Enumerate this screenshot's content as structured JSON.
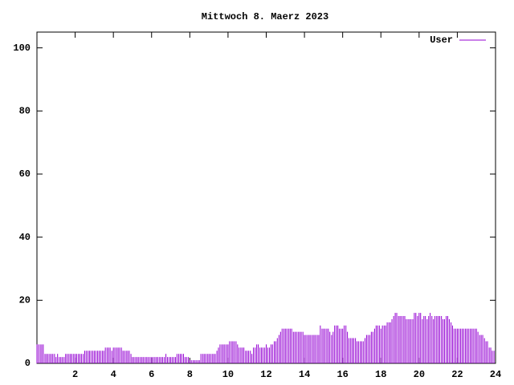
{
  "chart_data": {
    "type": "bar",
    "title": "Mittwoch 8. Maerz 2023",
    "x": [
      0,
      0.08,
      0.17,
      0.25,
      0.33,
      0.42,
      0.5,
      0.58,
      0.67,
      0.75,
      0.83,
      0.92,
      1,
      1.08,
      1.17,
      1.25,
      1.33,
      1.42,
      1.5,
      1.58,
      1.67,
      1.75,
      1.83,
      1.92,
      2,
      2.08,
      2.17,
      2.25,
      2.33,
      2.42,
      2.5,
      2.58,
      2.67,
      2.75,
      2.83,
      2.92,
      3,
      3.08,
      3.17,
      3.25,
      3.33,
      3.42,
      3.5,
      3.58,
      3.67,
      3.75,
      3.83,
      3.92,
      4,
      4.08,
      4.17,
      4.25,
      4.33,
      4.42,
      4.5,
      4.58,
      4.67,
      4.75,
      4.83,
      4.92,
      5,
      5.08,
      5.17,
      5.25,
      5.33,
      5.42,
      5.5,
      5.58,
      5.67,
      5.75,
      5.83,
      5.92,
      6,
      6.08,
      6.17,
      6.25,
      6.33,
      6.42,
      6.5,
      6.58,
      6.67,
      6.75,
      6.83,
      6.92,
      7,
      7.08,
      7.17,
      7.25,
      7.33,
      7.42,
      7.5,
      7.58,
      7.67,
      7.75,
      7.83,
      7.92,
      8,
      8.08,
      8.17,
      8.25,
      8.33,
      8.42,
      8.5,
      8.58,
      8.67,
      8.75,
      8.83,
      8.92,
      9,
      9.08,
      9.17,
      9.25,
      9.33,
      9.42,
      9.5,
      9.58,
      9.67,
      9.75,
      9.83,
      9.92,
      10,
      10.08,
      10.17,
      10.25,
      10.33,
      10.42,
      10.5,
      10.58,
      10.67,
      10.75,
      10.83,
      10.92,
      11,
      11.08,
      11.17,
      11.25,
      11.33,
      11.42,
      11.5,
      11.58,
      11.67,
      11.75,
      11.83,
      11.92,
      12,
      12.08,
      12.17,
      12.25,
      12.33,
      12.42,
      12.5,
      12.58,
      12.67,
      12.75,
      12.83,
      12.92,
      13,
      13.08,
      13.17,
      13.25,
      13.33,
      13.42,
      13.5,
      13.58,
      13.67,
      13.75,
      13.83,
      13.92,
      14,
      14.08,
      14.17,
      14.25,
      14.33,
      14.42,
      14.5,
      14.58,
      14.67,
      14.75,
      14.83,
      14.92,
      15,
      15.08,
      15.17,
      15.25,
      15.33,
      15.42,
      15.5,
      15.58,
      15.67,
      15.75,
      15.83,
      15.92,
      16,
      16.08,
      16.17,
      16.25,
      16.33,
      16.42,
      16.5,
      16.58,
      16.67,
      16.75,
      16.83,
      16.92,
      17,
      17.08,
      17.17,
      17.25,
      17.33,
      17.42,
      17.5,
      17.58,
      17.67,
      17.75,
      17.83,
      17.92,
      18,
      18.08,
      18.17,
      18.25,
      18.33,
      18.42,
      18.5,
      18.58,
      18.67,
      18.75,
      18.83,
      18.92,
      19,
      19.08,
      19.17,
      19.25,
      19.33,
      19.42,
      19.5,
      19.58,
      19.67,
      19.75,
      19.83,
      19.92,
      20,
      20.08,
      20.17,
      20.25,
      20.33,
      20.42,
      20.5,
      20.58,
      20.67,
      20.75,
      20.83,
      20.92,
      21,
      21.08,
      21.17,
      21.25,
      21.33,
      21.42,
      21.5,
      21.58,
      21.67,
      21.75,
      21.83,
      21.92,
      22,
      22.08,
      22.17,
      22.25,
      22.33,
      22.42,
      22.5,
      22.58,
      22.67,
      22.75,
      22.83,
      22.92,
      23,
      23.08,
      23.17,
      23.25,
      23.33,
      23.42,
      23.5,
      23.58,
      23.67,
      23.75,
      23.83,
      23.92
    ],
    "series": [
      {
        "name": "User",
        "color": "#9400d3",
        "values": [
          6,
          6,
          6,
          6,
          6,
          3,
          3,
          3,
          3,
          3,
          3,
          3,
          2,
          3,
          2,
          2,
          2,
          2,
          3,
          3,
          3,
          3,
          3,
          3,
          3,
          3,
          3,
          3,
          3,
          3,
          4,
          4,
          4,
          4,
          4,
          4,
          4,
          4,
          4,
          4,
          4,
          4,
          4,
          5,
          5,
          5,
          5,
          4,
          5,
          5,
          5,
          5,
          5,
          5,
          4,
          4,
          4,
          4,
          4,
          3,
          2,
          2,
          2,
          2,
          2,
          2,
          2,
          2,
          2,
          2,
          2,
          2,
          2,
          2,
          2,
          2,
          2,
          2,
          2,
          2,
          2,
          3,
          2,
          2,
          2,
          2,
          2,
          2,
          3,
          3,
          3,
          3,
          3,
          2,
          2,
          2,
          1,
          1,
          1,
          1,
          1,
          1,
          1,
          3,
          3,
          3,
          3,
          3,
          3,
          3,
          3,
          3,
          3,
          4,
          5,
          6,
          6,
          6,
          6,
          6,
          6,
          7,
          7,
          7,
          7,
          7,
          6,
          5,
          5,
          5,
          5,
          4,
          4,
          4,
          4,
          3,
          5,
          5,
          6,
          6,
          5,
          5,
          5,
          5,
          6,
          5,
          5,
          6,
          6,
          7,
          7,
          8,
          9,
          10,
          11,
          11,
          11,
          11,
          11,
          11,
          11,
          10,
          10,
          10,
          10,
          10,
          10,
          10,
          9,
          9,
          9,
          9,
          9,
          9,
          9,
          9,
          9,
          9,
          12,
          11,
          11,
          11,
          11,
          11,
          10,
          9,
          10,
          12,
          12,
          12,
          11,
          11,
          11,
          12,
          12,
          10,
          8,
          8,
          8,
          8,
          8,
          7,
          7,
          7,
          7,
          7,
          8,
          9,
          9,
          9,
          10,
          10,
          11,
          12,
          12,
          12,
          11,
          12,
          12,
          12,
          13,
          13,
          13,
          14,
          15,
          16,
          16,
          15,
          15,
          15,
          15,
          15,
          14,
          14,
          14,
          14,
          14,
          16,
          16,
          15,
          16,
          16,
          14,
          15,
          15,
          14,
          15,
          16,
          15,
          14,
          15,
          15,
          15,
          15,
          15,
          14,
          14,
          15,
          15,
          14,
          13,
          12,
          11,
          11,
          11,
          11,
          11,
          11,
          11,
          11,
          11,
          11,
          11,
          11,
          11,
          11,
          11,
          10,
          9,
          9,
          9,
          8,
          7,
          7,
          5,
          5,
          4,
          4
        ]
      }
    ],
    "xlim": [
      0,
      24
    ],
    "xticks": [
      2,
      4,
      6,
      8,
      10,
      12,
      14,
      16,
      18,
      20,
      22,
      24
    ],
    "ylim": [
      0,
      105
    ],
    "yticks": [
      0,
      20,
      40,
      60,
      80,
      100
    ],
    "legend": "top-right"
  }
}
